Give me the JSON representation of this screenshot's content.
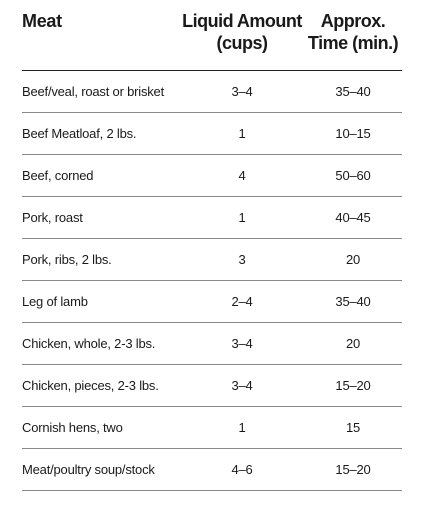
{
  "table": {
    "headers": {
      "meat": "Meat",
      "liquid_line1": "Liquid Amount",
      "liquid_line2": "(cups)",
      "time_line1": "Approx.",
      "time_line2": "Time (min.)"
    },
    "rows": [
      {
        "meat": "Beef/veal, roast or brisket",
        "liquid": "3–4",
        "time": "35–40"
      },
      {
        "meat": "Beef Meatloaf, 2 lbs.",
        "liquid": "1",
        "time": "10–15"
      },
      {
        "meat": "Beef, corned",
        "liquid": "4",
        "time": "50–60"
      },
      {
        "meat": "Pork, roast",
        "liquid": "1",
        "time": "40–45"
      },
      {
        "meat": "Pork, ribs, 2 lbs.",
        "liquid": "3",
        "time": "20"
      },
      {
        "meat": "Leg of lamb",
        "liquid": "2–4",
        "time": "35–40"
      },
      {
        "meat": "Chicken, whole, 2-3 lbs.",
        "liquid": "3–4",
        "time": "20"
      },
      {
        "meat": "Chicken, pieces, 2-3 lbs.",
        "liquid": "3–4",
        "time": "15–20"
      },
      {
        "meat": "Cornish hens, two",
        "liquid": "1",
        "time": "15"
      },
      {
        "meat": "Meat/poultry soup/stock",
        "liquid": "4–6",
        "time": "15–20"
      }
    ]
  }
}
